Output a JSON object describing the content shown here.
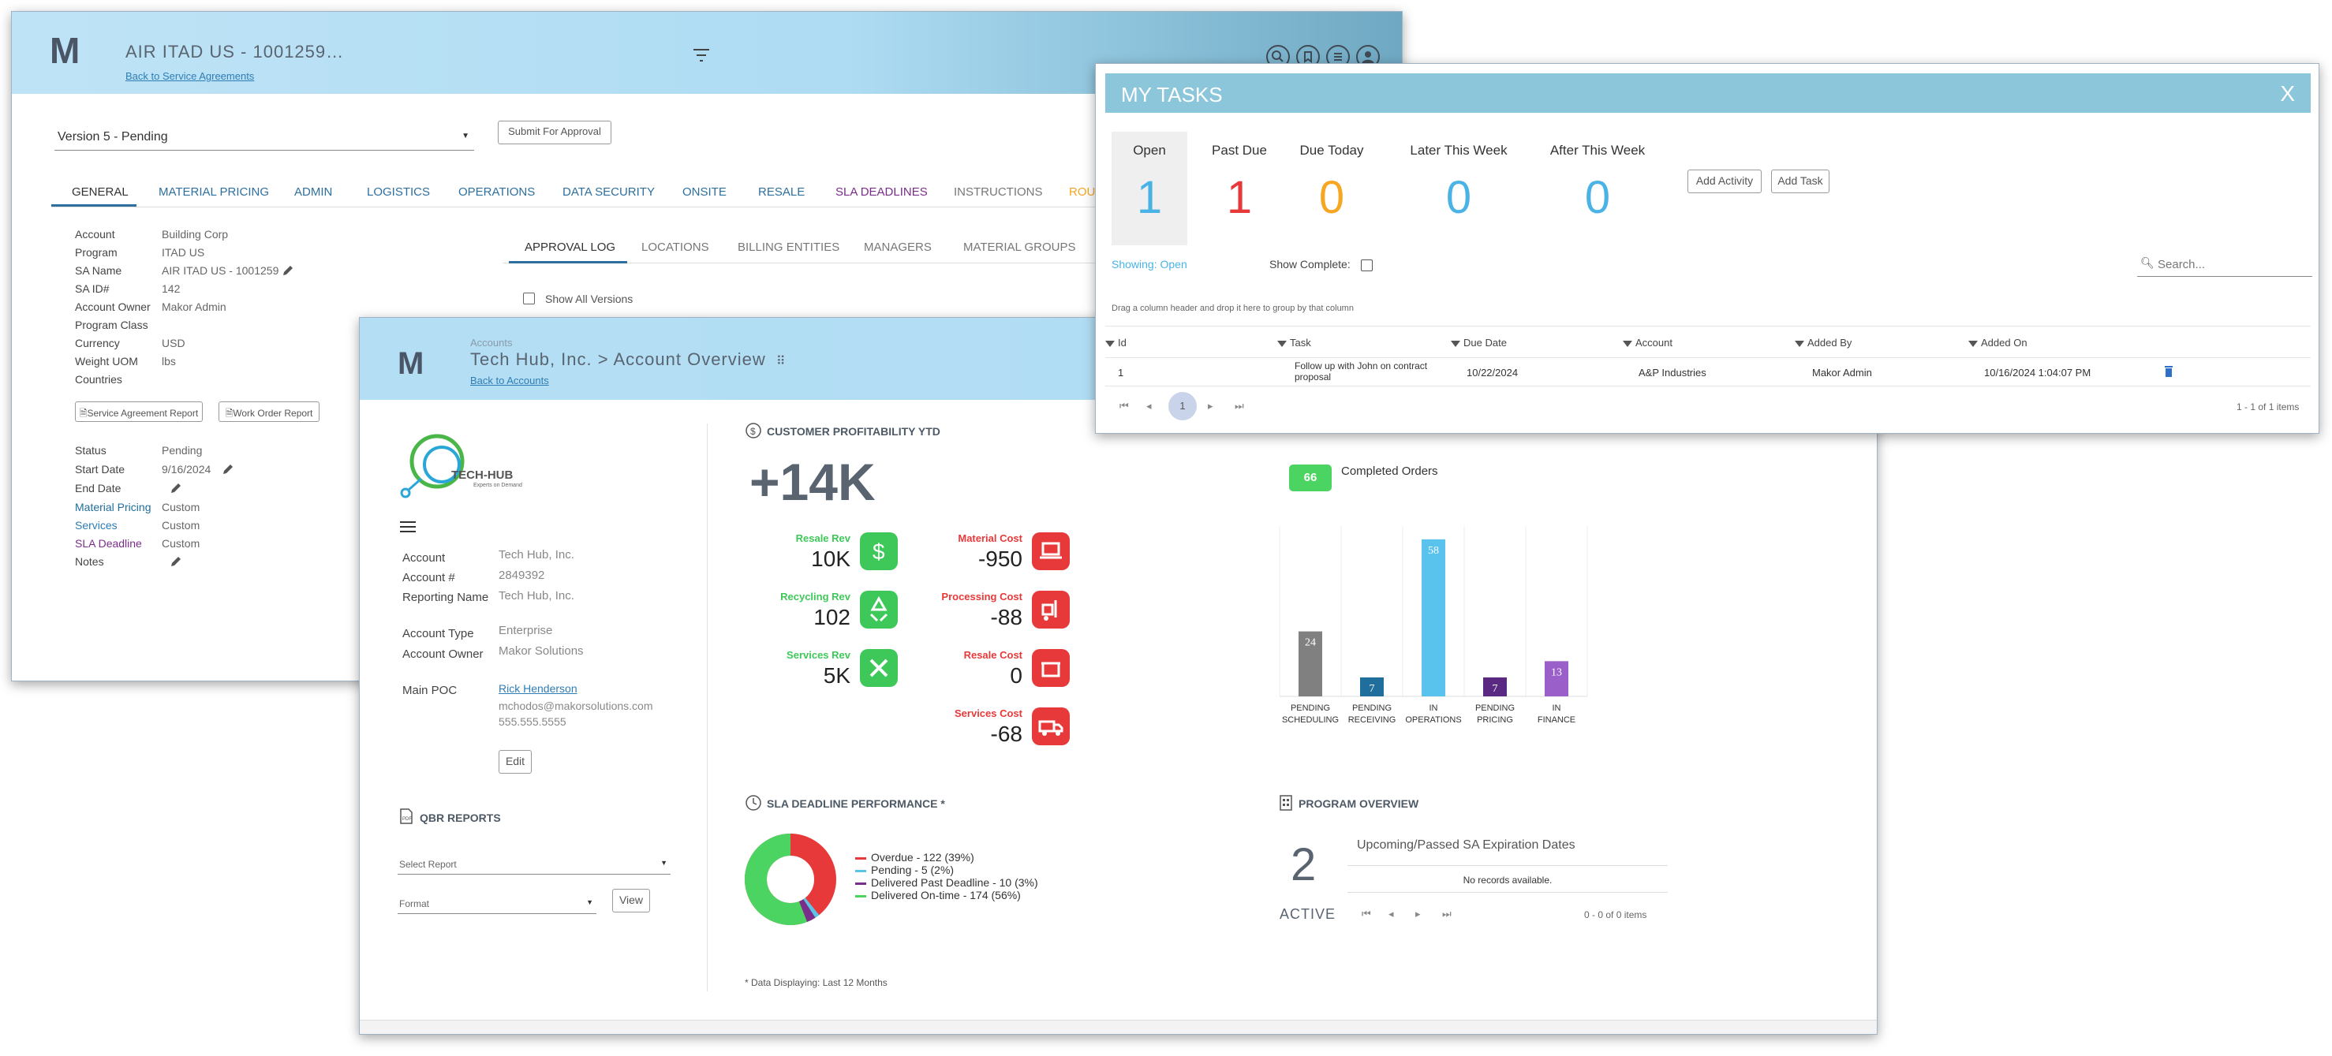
{
  "window1": {
    "title": "AIR ITAD US - 1001259…",
    "back_link": "Back to Service Agreements",
    "version_select": "Version 5 - Pending",
    "submit_button": "Submit For Approval",
    "tabs": [
      "GENERAL",
      "MATERIAL PRICING",
      "ADMIN",
      "LOGISTICS",
      "OPERATIONS",
      "DATA SECURITY",
      "ONSITE",
      "RESALE",
      "SLA DEADLINES",
      "INSTRUCTIONS",
      "ROU"
    ],
    "details": [
      {
        "label": "Account",
        "value": "Building Corp"
      },
      {
        "label": "Program",
        "value": "ITAD US"
      },
      {
        "label": "SA Name",
        "value": "AIR ITAD US - 1001259"
      },
      {
        "label": "SA ID#",
        "value": "142"
      },
      {
        "label": "Account Owner",
        "value": "Makor Admin"
      },
      {
        "label": "Program Class",
        "value": ""
      },
      {
        "label": "Currency",
        "value": "USD"
      },
      {
        "label": "Weight UOM",
        "value": "lbs"
      },
      {
        "label": "Countries",
        "value": ""
      }
    ],
    "report_buttons": [
      "Service Agreement Report",
      "Work Order Report"
    ],
    "status_rows": [
      {
        "label": "Status",
        "value": "Pending"
      },
      {
        "label": "Start Date",
        "value": "9/16/2024"
      },
      {
        "label": "End Date",
        "value": ""
      },
      {
        "label": "Material Pricing",
        "value": "Custom"
      },
      {
        "label": "Services",
        "value": "Custom"
      },
      {
        "label": "SLA Deadline",
        "value": "Custom"
      },
      {
        "label": "Notes",
        "value": ""
      }
    ],
    "sub_tabs": [
      "APPROVAL LOG",
      "LOCATIONS",
      "BILLING ENTITIES",
      "MANAGERS",
      "MATERIAL GROUPS"
    ],
    "show_all_versions": "Show All Versions"
  },
  "window2": {
    "breadcrumb": "Accounts",
    "title": "Tech Hub, Inc.  >  Account Overview",
    "back_link": "Back to Accounts",
    "company_logo_text": "TECH-HUB",
    "company_logo_tagline": "Experts on Demand",
    "account_fields": [
      {
        "label": "Account",
        "value": "Tech Hub, Inc."
      },
      {
        "label": "Account #",
        "value": "2849392"
      },
      {
        "label": "Reporting Name",
        "value": "Tech Hub, Inc."
      },
      {
        "label": "Account Type",
        "value": "Enterprise"
      },
      {
        "label": "Account Owner",
        "value": "Makor Solutions"
      },
      {
        "label": "Main POC",
        "value": "Rick Henderson"
      }
    ],
    "poc_email": "mchodos@makorsolutions.com",
    "poc_phone": "555.555.5555",
    "edit_button": "Edit",
    "qbr_title": "QBR REPORTS",
    "select_report_placeholder": "Select Report",
    "format_placeholder": "Format",
    "view_button": "View",
    "profit_title": "CUSTOMER PROFITABILITY YTD",
    "profit_total": "+14K",
    "revenue": [
      {
        "label": "Resale Rev",
        "value": "10K",
        "icon": "dollar-icon"
      },
      {
        "label": "Recycling Rev",
        "value": "102",
        "icon": "recycle-icon"
      },
      {
        "label": "Services Rev",
        "value": "5K",
        "icon": "tools-icon"
      }
    ],
    "costs": [
      {
        "label": "Material Cost",
        "value": "-950",
        "icon": "laptop-icon"
      },
      {
        "label": "Processing Cost",
        "value": "-88",
        "icon": "forklift-icon"
      },
      {
        "label": "Resale Cost",
        "value": "0",
        "icon": "store-icon"
      },
      {
        "label": "Services Cost",
        "value": "-68",
        "icon": "truck-icon"
      }
    ],
    "completed_orders_count": "66",
    "completed_orders_label": "Completed Orders",
    "sla_title": "SLA DEADLINE PERFORMANCE *",
    "sla_legend": [
      {
        "label": "Overdue - 122 (39%)",
        "color": "#e8393a"
      },
      {
        "label": "Pending - 5 (2%)",
        "color": "#5bc4e6"
      },
      {
        "label": "Delivered Past Deadline - 10 (3%)",
        "color": "#7a2d8a"
      },
      {
        "label": "Delivered On-time - 174 (56%)",
        "color": "#4cd463"
      }
    ],
    "data_note": "* Data Displaying: Last 12 Months",
    "program_title": "PROGRAM OVERVIEW",
    "program_count": "2",
    "program_status": "ACTIVE",
    "expiration_title": "Upcoming/Passed SA Expiration Dates",
    "no_records": "No records available.",
    "expiration_pager": "0 - 0 of 0 items"
  },
  "chart_data": {
    "type": "bar",
    "categories": [
      "PENDING SCHEDULING",
      "PENDING RECEIVING",
      "IN OPERATIONS",
      "PENDING PRICING",
      "IN FINANCE"
    ],
    "values": [
      24,
      7,
      58,
      7,
      13
    ],
    "colors": [
      "#808080",
      "#1f6e9c",
      "#59c3ee",
      "#5a2a82",
      "#9b5fc9"
    ],
    "title": "",
    "xlabel": "",
    "ylabel": "",
    "ylim": [
      0,
      60
    ],
    "grid": true
  },
  "window3": {
    "title": "MY TASKS",
    "close": "X",
    "counters": [
      {
        "label": "Open",
        "value": "1",
        "color": "#4ab3e6"
      },
      {
        "label": "Past Due",
        "value": "1",
        "color": "#e8393a"
      },
      {
        "label": "Due Today",
        "value": "0",
        "color": "#f5a623"
      },
      {
        "label": "Later This Week",
        "value": "0",
        "color": "#4ab3e6"
      },
      {
        "label": "After This Week",
        "value": "0",
        "color": "#4ab3e6"
      }
    ],
    "add_activity": "Add Activity",
    "add_task": "Add Task",
    "showing": "Showing: Open",
    "show_complete": "Show Complete:",
    "search_placeholder": "Search...",
    "group_hint": "Drag a column header and drop it here to group by that column",
    "columns": [
      "Id",
      "Task",
      "Due Date",
      "Account",
      "Added By",
      "Added On"
    ],
    "rows": [
      {
        "id": "1",
        "task": "Follow up with John on contract proposal",
        "due": "10/22/2024",
        "account": "A&P Industries",
        "added_by": "Makor Admin",
        "added_on": "10/16/2024 1:04:07 PM"
      }
    ],
    "page": "1",
    "pager_info": "1 - 1 of 1 items"
  }
}
